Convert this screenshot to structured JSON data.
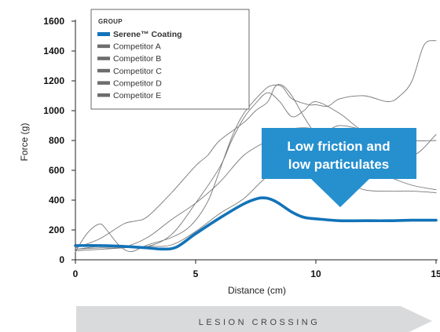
{
  "chart_data": {
    "type": "line",
    "xlabel": "Distance (cm)",
    "ylabel": "Force (g)",
    "xlim": [
      0,
      15
    ],
    "ylim": [
      0,
      1600
    ],
    "xticks": [
      0,
      5,
      10,
      15
    ],
    "yticks": [
      0,
      200,
      400,
      600,
      800,
      1000,
      1200,
      1400,
      1600
    ],
    "grid": false,
    "legend": {
      "title": "GROUP",
      "placement": "top-left",
      "entries": [
        "Serene™ Coating",
        "Competitor A",
        "Competitor B",
        "Competitor C",
        "Competitor D",
        "Competitor E"
      ]
    },
    "series": [
      {
        "name": "Serene™ Coating",
        "color": "#1273b8",
        "x": [
          0,
          1,
          2,
          3,
          3.6,
          4.2,
          5,
          6,
          7,
          7.6,
          8,
          8.4,
          9,
          9.5,
          10,
          11,
          12,
          13,
          14,
          15
        ],
        "y": [
          95,
          95,
          90,
          80,
          72,
          85,
          175,
          280,
          375,
          412,
          412,
          385,
          320,
          285,
          275,
          262,
          262,
          262,
          265,
          265
        ]
      },
      {
        "name": "Competitor A",
        "color": "#777777",
        "x": [
          0,
          0.5,
          1,
          1.3,
          1.8,
          2.3,
          3,
          4,
          4.8,
          5.5,
          6,
          6.5,
          7,
          7.8,
          8.2,
          8.6,
          9,
          9.7,
          10,
          10.5,
          11,
          12,
          13,
          13.5,
          14,
          14.5,
          15
        ],
        "y": [
          55,
          180,
          240,
          200,
          100,
          55,
          100,
          150,
          230,
          390,
          600,
          820,
          980,
          1130,
          1170,
          1160,
          1080,
          1040,
          1040,
          1030,
          1080,
          1100,
          1060,
          1100,
          1200,
          1440,
          1470
        ]
      },
      {
        "name": "Competitor B",
        "color": "#777777",
        "x": [
          0,
          1,
          2,
          2.5,
          3,
          4,
          5,
          5.5,
          6,
          7,
          7.5,
          8,
          8.3,
          8.6,
          9,
          9.5,
          10,
          10.3,
          10.5,
          11,
          12,
          13,
          14,
          15
        ],
        "y": [
          80,
          140,
          240,
          260,
          290,
          450,
          630,
          700,
          800,
          920,
          1000,
          1060,
          1160,
          1170,
          1100,
          960,
          840,
          820,
          860,
          900,
          870,
          820,
          700,
          840
        ]
      },
      {
        "name": "Competitor C",
        "color": "#777777",
        "x": [
          0,
          1,
          2,
          3,
          4,
          5,
          6,
          6.5,
          7,
          7.5,
          8,
          8.5,
          9,
          9.5,
          10,
          11,
          12,
          13,
          14,
          15
        ],
        "y": [
          70,
          90,
          95,
          90,
          170,
          380,
          620,
          800,
          950,
          1050,
          1120,
          1060,
          960,
          1000,
          1060,
          980,
          860,
          830,
          800,
          800
        ]
      },
      {
        "name": "Competitor D",
        "color": "#777777",
        "x": [
          0,
          1,
          2,
          3,
          4,
          5,
          6,
          7,
          8,
          8.5,
          9,
          10,
          11,
          12,
          13,
          14,
          15
        ],
        "y": [
          70,
          80,
          85,
          150,
          270,
          380,
          520,
          700,
          800,
          850,
          880,
          870,
          730,
          640,
          560,
          500,
          470
        ]
      },
      {
        "name": "Competitor E",
        "color": "#777777",
        "x": [
          0,
          1,
          2,
          3,
          4,
          5,
          6,
          7,
          8,
          9,
          10,
          11,
          12,
          13,
          14,
          15
        ],
        "y": [
          60,
          70,
          80,
          90,
          100,
          190,
          310,
          410,
          560,
          620,
          600,
          540,
          470,
          460,
          460,
          450
        ]
      }
    ],
    "annotation": {
      "lines": [
        "Low friction and",
        "low particulates"
      ],
      "color": "#2690cf"
    },
    "footer_arrow": {
      "label": "LESION CROSSING",
      "color": "#d9dadb"
    }
  }
}
